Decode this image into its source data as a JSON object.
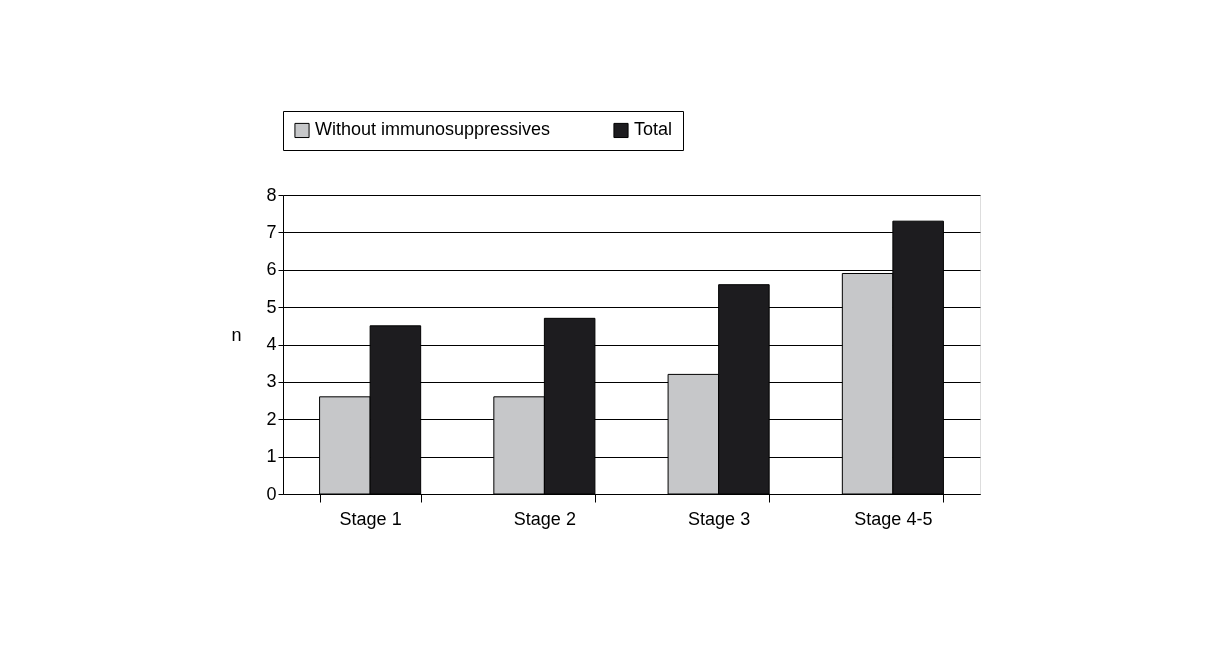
{
  "chart_data": {
    "type": "bar",
    "ylabel": "n",
    "categories": [
      "Stage 1",
      "Stage 2",
      "Stage 3",
      "Stage 4-5"
    ],
    "series": [
      {
        "name": "Without immunosuppressives",
        "color": "#c6c7c9",
        "values": [
          2.6,
          2.6,
          3.2,
          5.9
        ]
      },
      {
        "name": "Total",
        "color": "#1d1c1f",
        "values": [
          4.5,
          4.7,
          5.6,
          7.3
        ]
      }
    ],
    "ylim": [
      0,
      8
    ],
    "yticks": [
      0,
      1,
      2,
      3,
      4,
      5,
      6,
      7,
      8
    ],
    "grid": "y",
    "legend": "top"
  }
}
